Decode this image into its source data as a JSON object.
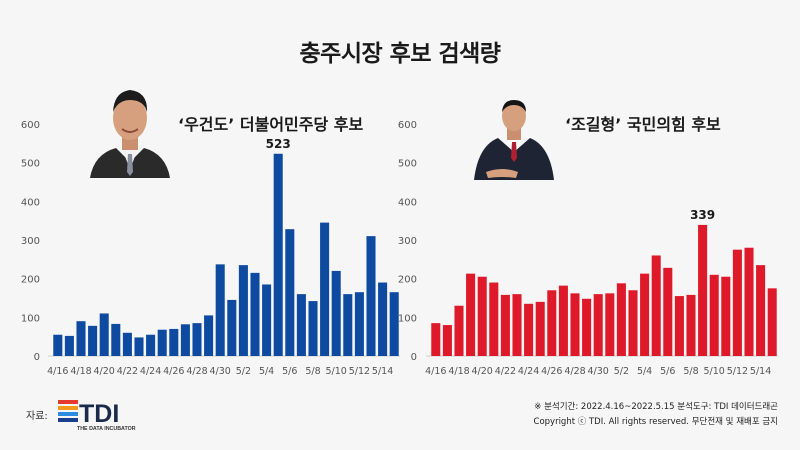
{
  "title": "충주시장 후보 검색량",
  "footer": {
    "source_label": "자료:",
    "logo_text": "TDI",
    "logo_subtext": "THE DATA INCUBATOR",
    "note_line1": "※ 분석기간: 2022.4.16~2022.5.15   분석도구: TDI 데이터드래곤",
    "note_line2": "Copyright ⓒ TDI. All rights reserved. 무단전재 및 재배포 금지"
  },
  "colors": {
    "left_series": "#0d4aa0",
    "right_series": "#de1a2a"
  },
  "chart_data": [
    {
      "type": "bar",
      "series": [
        {
          "name": "‘우건도’ 더불어민주당 후보"
        }
      ],
      "y_ticks": [
        0,
        100,
        200,
        300,
        400,
        500,
        600
      ],
      "ylim": [
        0,
        600
      ],
      "x_tick_labels": [
        "4/16",
        "4/18",
        "4/20",
        "4/22",
        "4/24",
        "4/26",
        "4/28",
        "4/30",
        "5/2",
        "5/4",
        "5/6",
        "5/8",
        "5/10",
        "5/12",
        "5/14"
      ],
      "categories": [
        "4/16",
        "4/17",
        "4/18",
        "4/19",
        "4/20",
        "4/21",
        "4/22",
        "4/23",
        "4/24",
        "4/25",
        "4/26",
        "4/27",
        "4/28",
        "4/29",
        "4/30",
        "5/1",
        "5/2",
        "5/3",
        "5/4",
        "5/5",
        "5/6",
        "5/7",
        "5/8",
        "5/9",
        "5/10",
        "5/11",
        "5/12",
        "5/13",
        "5/14",
        "5/15"
      ],
      "values": [
        55,
        52,
        90,
        78,
        110,
        83,
        60,
        48,
        55,
        68,
        70,
        82,
        85,
        105,
        237,
        145,
        235,
        215,
        185,
        523,
        328,
        160,
        142,
        345,
        220,
        160,
        165,
        310,
        190,
        165
      ],
      "annotation": {
        "text": "523",
        "category": "5/5"
      },
      "color": "#0d4aa0"
    },
    {
      "type": "bar",
      "series": [
        {
          "name": "‘조길형’ 국민의힘 후보"
        }
      ],
      "y_ticks": [
        0,
        100,
        200,
        300,
        400,
        500,
        600
      ],
      "ylim": [
        0,
        600
      ],
      "x_tick_labels": [
        "4/16",
        "4/18",
        "4/20",
        "4/22",
        "4/24",
        "4/26",
        "4/28",
        "4/30",
        "5/2",
        "5/4",
        "5/6",
        "5/8",
        "5/10",
        "5/12",
        "5/14"
      ],
      "categories": [
        "4/16",
        "4/17",
        "4/18",
        "4/19",
        "4/20",
        "4/21",
        "4/22",
        "4/23",
        "4/24",
        "4/25",
        "4/26",
        "4/27",
        "4/28",
        "4/29",
        "4/30",
        "5/1",
        "5/2",
        "5/3",
        "5/4",
        "5/5",
        "5/6",
        "5/7",
        "5/8",
        "5/9",
        "5/10",
        "5/11",
        "5/12",
        "5/13",
        "5/14",
        "5/15"
      ],
      "values": [
        85,
        80,
        130,
        213,
        205,
        190,
        158,
        160,
        135,
        140,
        170,
        182,
        162,
        148,
        160,
        162,
        188,
        170,
        213,
        260,
        228,
        155,
        158,
        339,
        210,
        205,
        275,
        280,
        235,
        175
      ],
      "annotation": {
        "text": "339",
        "category": "5/9"
      },
      "color": "#de1a2a"
    }
  ]
}
